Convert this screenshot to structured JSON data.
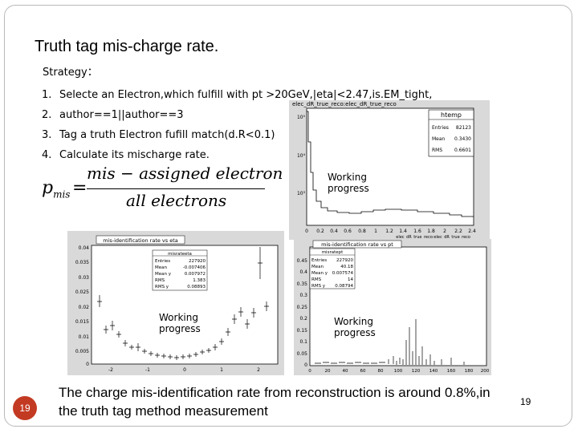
{
  "title": "Truth tag mis-charge rate.",
  "strategy_label": "Strategy：",
  "steps": [
    {
      "num": "1.",
      "text": "Selecte an Electron,which fulfill with pt >20GeV,|eta|<2.47,is.EM_tight,"
    },
    {
      "num": "2.",
      "text": "author==1||author==3"
    },
    {
      "num": "3.",
      "text": "Tag a truth Electron fufill match(d.R<0.1)"
    },
    {
      "num": "4.",
      "text": "Calculate its mischarge rate."
    }
  ],
  "formula": {
    "lhs_var": "p",
    "lhs_sub": "mis",
    "equals": "=",
    "numerator": "mis − assigned electron",
    "denominator": "all electrons"
  },
  "plots": [
    {
      "name": "dr-plot",
      "title": "elec_dR_true_reco:elec_dR_true_reco",
      "stats": {
        "name": "htemp",
        "rows": [
          [
            "Entries",
            "82123"
          ],
          [
            "Mean",
            "0.3430"
          ],
          [
            "RMS",
            "0.6601"
          ]
        ]
      },
      "x_ticks": [
        "0",
        "0.2",
        "0.4",
        "0.6",
        "0.8",
        "1",
        "1.2",
        "1.4",
        "1.6",
        "1.8",
        "2",
        "2.2",
        "2.4"
      ],
      "y_ticks": [
        "10⁵",
        "10⁴",
        "10³"
      ],
      "x_label": "elec_dR_true_reco:elec_dR_true_reco",
      "overlay": "Working progress"
    },
    {
      "name": "eta-plot",
      "title": "mis-identification rate vs eta",
      "stats": {
        "name": "misrateeta",
        "rows": [
          [
            "Entries",
            "227920"
          ],
          [
            "Mean",
            "-0.007406"
          ],
          [
            "Mean y",
            "0.007972"
          ],
          [
            "RMS",
            "1.383"
          ],
          [
            "RMS y",
            "0.08893"
          ]
        ]
      },
      "x_ticks": [
        "-2",
        "-1",
        "0",
        "1",
        "2"
      ],
      "y_ticks": [
        "0.04",
        "0.035",
        "0.03",
        "0.025",
        "0.02",
        "0.015",
        "0.01",
        "0.005",
        "0"
      ],
      "overlay": "Working progress"
    },
    {
      "name": "pt-plot",
      "title": "mis-identification rate vs pt",
      "stats": {
        "name": "misratept",
        "rows": [
          [
            "Entries",
            "227920"
          ],
          [
            "Mean",
            "40.18"
          ],
          [
            "Mean y",
            "0.007574"
          ],
          [
            "RMS",
            "14"
          ],
          [
            "RMS y",
            "0.08794"
          ]
        ]
      },
      "x_ticks": [
        "0",
        "20",
        "40",
        "60",
        "80",
        "100",
        "120",
        "140",
        "160",
        "180",
        "200"
      ],
      "y_ticks": [
        "0.45",
        "0.4",
        "0.35",
        "0.3",
        "0.25",
        "0.2",
        "0.15",
        "0.1",
        "0.05",
        "0"
      ],
      "overlay": "Working progress"
    }
  ],
  "conclusion": "The charge mis-identification rate from reconstruction is around 0.8%,in the truth tag method measurement",
  "slide_number_badge": "19",
  "slide_number": "19",
  "colors": {
    "badge": "#c33a22",
    "frame": "#b9b9b9",
    "plot_bg": "#d9d9d9"
  }
}
